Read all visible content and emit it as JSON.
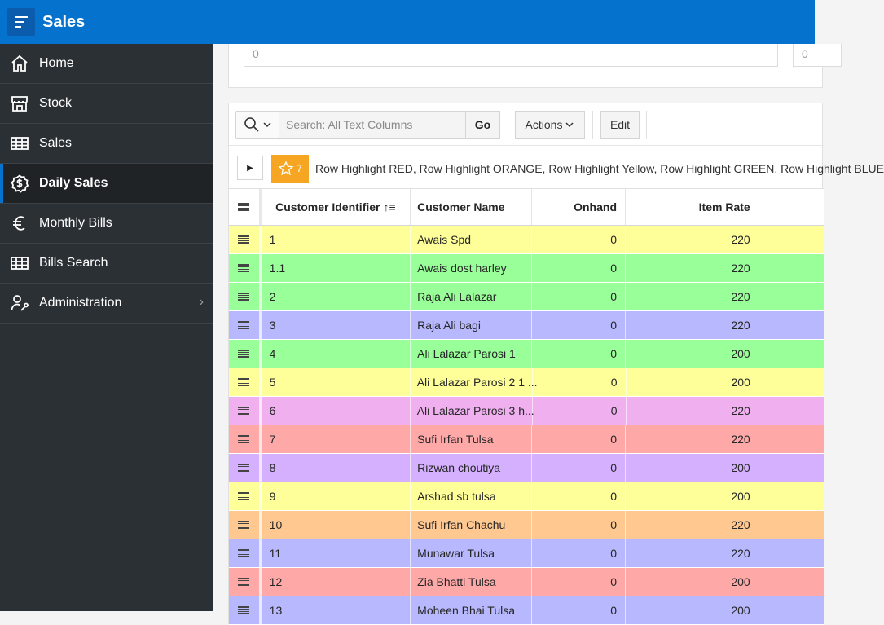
{
  "header": {
    "title": "Sales"
  },
  "sidebar": {
    "items": [
      {
        "label": "Home",
        "icon": "home-icon"
      },
      {
        "label": "Stock",
        "icon": "store-icon"
      },
      {
        "label": "Sales",
        "icon": "table-icon"
      },
      {
        "label": "Daily Sales",
        "icon": "dollar-icon",
        "active": true
      },
      {
        "label": "Monthly Bills",
        "icon": "euro-icon"
      },
      {
        "label": "Bills Search",
        "icon": "table-icon"
      },
      {
        "label": "Administration",
        "icon": "user-wrench-icon",
        "has_children": true
      }
    ]
  },
  "form": {
    "field1_value": "0",
    "field2_value": "0"
  },
  "toolbar": {
    "search_placeholder": "Search: All Text Columns",
    "go_label": "Go",
    "actions_label": "Actions",
    "edit_label": "Edit"
  },
  "filter": {
    "highlight_count": "7",
    "text": "Row Highlight RED, Row Highlight ORANGE, Row Highlight Yellow, Row Highlight GREEN, Row Highlight BLUE"
  },
  "grid": {
    "columns": {
      "id": "Customer Identifier",
      "name": "Customer Name",
      "onhand": "Onhand",
      "rate": "Item Rate"
    },
    "rows": [
      {
        "id": "1",
        "name": "Awais Spd",
        "onhand": "0",
        "rate": "220",
        "color": "#ffff99"
      },
      {
        "id": "1.1",
        "name": "Awais dost harley",
        "onhand": "0",
        "rate": "220",
        "color": "#99ff99"
      },
      {
        "id": "2",
        "name": "Raja Ali Lalazar",
        "onhand": "0",
        "rate": "220",
        "color": "#99ff99"
      },
      {
        "id": "3",
        "name": "Raja Ali bagi",
        "onhand": "0",
        "rate": "220",
        "color": "#b8b8ff"
      },
      {
        "id": "4",
        "name": "Ali Lalazar Parosi 1",
        "onhand": "0",
        "rate": "200",
        "color": "#99ff99"
      },
      {
        "id": "5",
        "name": "Ali Lalazar Parosi 2 1 ...",
        "onhand": "0",
        "rate": "200",
        "color": "#ffff99"
      },
      {
        "id": "6",
        "name": "Ali Lalazar Parosi 3 h...",
        "onhand": "0",
        "rate": "220",
        "color": "#f0b0f0"
      },
      {
        "id": "7",
        "name": "Sufi Irfan Tulsa",
        "onhand": "0",
        "rate": "220",
        "color": "#ffa8a8"
      },
      {
        "id": "8",
        "name": "Rizwan choutiya",
        "onhand": "0",
        "rate": "200",
        "color": "#d4b0ff"
      },
      {
        "id": "9",
        "name": "Arshad sb tulsa",
        "onhand": "0",
        "rate": "200",
        "color": "#ffff99"
      },
      {
        "id": "10",
        "name": "Sufi Irfan Chachu",
        "onhand": "0",
        "rate": "220",
        "color": "#ffc890"
      },
      {
        "id": "11",
        "name": "Munawar Tulsa",
        "onhand": "0",
        "rate": "220",
        "color": "#b8b8ff"
      },
      {
        "id": "12",
        "name": "Zia Bhatti Tulsa",
        "onhand": "0",
        "rate": "200",
        "color": "#ffa8a8"
      },
      {
        "id": "13",
        "name": "Moheen Bhai Tulsa",
        "onhand": "0",
        "rate": "200",
        "color": "#b8b8ff"
      }
    ]
  }
}
